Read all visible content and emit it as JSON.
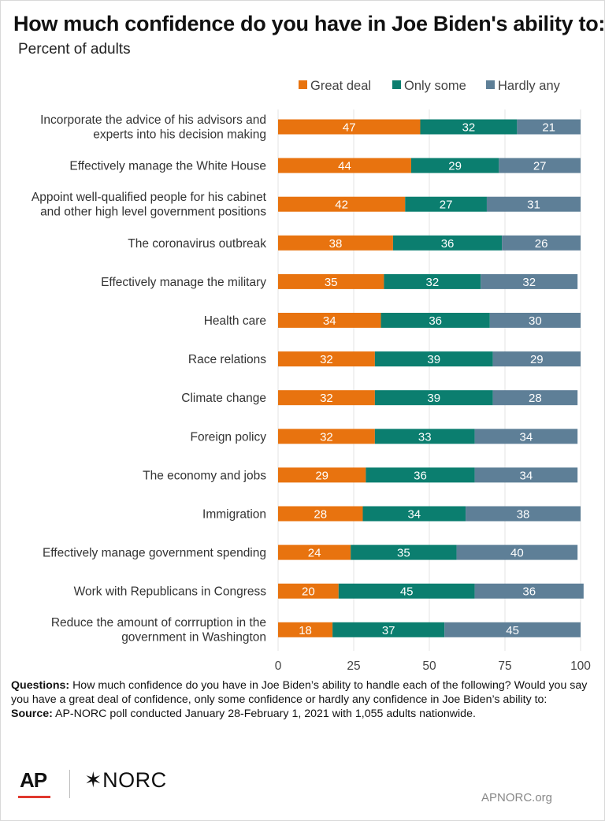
{
  "title": "How much confidence do you have in Joe Biden's ability to:",
  "subtitle": "Percent of adults",
  "colors": {
    "great_deal": "#e8730f",
    "only_some": "#0b7e6f",
    "hardly_any": "#5e7f97",
    "grid": "#e3e3e3"
  },
  "chart_data": {
    "type": "bar",
    "orientation": "horizontal",
    "stacked": true,
    "categories": [
      [
        "Incorporate the advice of his advisors and",
        "experts into his decision making"
      ],
      [
        "Effectively manage the White House"
      ],
      [
        "Appoint well-qualified people for his cabinet",
        "and other high level government positions"
      ],
      [
        "The coronavirus outbreak"
      ],
      [
        "Effectively manage the military"
      ],
      [
        "Health care"
      ],
      [
        "Race relations"
      ],
      [
        "Climate change"
      ],
      [
        "Foreign policy"
      ],
      [
        "The economy and jobs"
      ],
      [
        "Immigration"
      ],
      [
        "Effectively manage government spending"
      ],
      [
        "Work with Republicans in Congress"
      ],
      [
        "Reduce the amount of corrruption in the",
        "government in Washington"
      ]
    ],
    "series": [
      {
        "name": "Great deal",
        "values": [
          47,
          44,
          42,
          38,
          35,
          34,
          32,
          32,
          32,
          29,
          28,
          24,
          20,
          18
        ]
      },
      {
        "name": "Only some",
        "values": [
          32,
          29,
          27,
          36,
          32,
          36,
          39,
          39,
          33,
          36,
          34,
          35,
          45,
          37
        ]
      },
      {
        "name": "Hardly any",
        "values": [
          21,
          27,
          31,
          26,
          32,
          30,
          29,
          28,
          34,
          34,
          38,
          40,
          36,
          45
        ]
      }
    ],
    "xlim": [
      0,
      100
    ],
    "xticks": [
      "0",
      "25",
      "50",
      "75",
      "100"
    ],
    "grid": true,
    "legend_position": "top-right"
  },
  "notes": {
    "questions_label": "Questions:",
    "questions_text": "How much confidence do you have in Joe Biden’s ability to handle each of the following? Would you say you have a great deal of confidence, only some confidence or hardly any confidence in Joe Biden’s ability to:",
    "source_label": "Source:",
    "source_text": "AP-NORC poll conducted January 28-February 1, 2021 with 1,055 adults nationwide."
  },
  "footer": {
    "logo_ap": "AP",
    "logo_norc": "✶NORC",
    "site": "APNORC.org"
  }
}
